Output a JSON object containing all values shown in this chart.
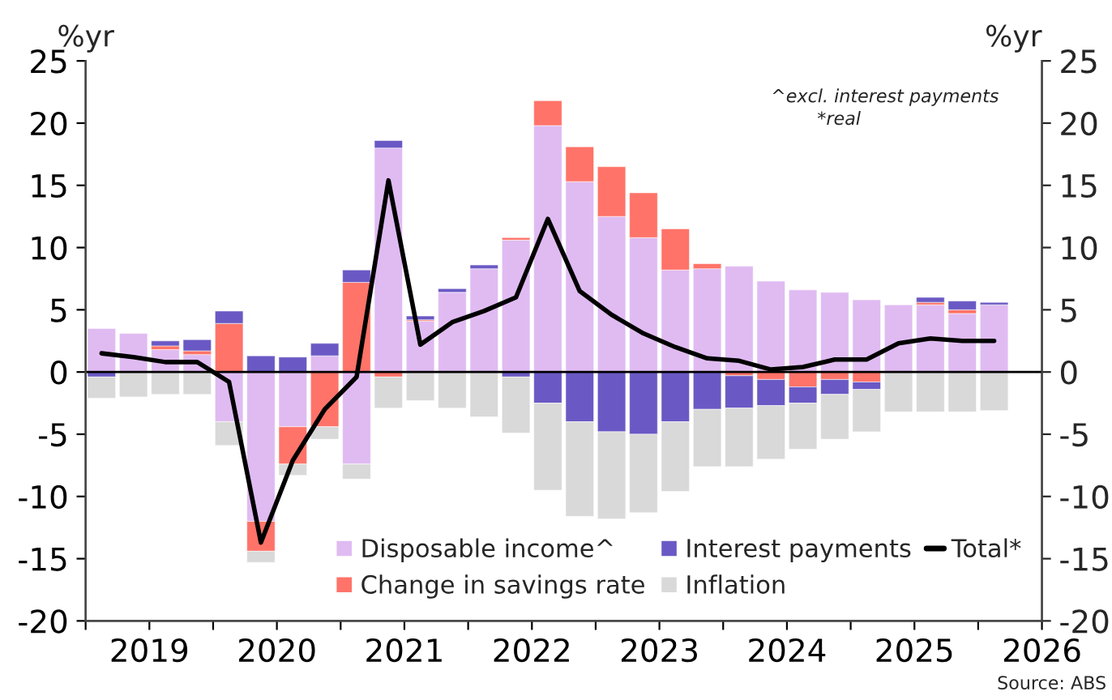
{
  "chart_data": {
    "type": "bar",
    "stacked": true,
    "x": [
      2019.125,
      2019.375,
      2019.625,
      2019.875,
      2020.125,
      2020.375,
      2020.625,
      2020.875,
      2021.125,
      2021.375,
      2021.625,
      2021.875,
      2022.125,
      2022.375,
      2022.625,
      2022.875,
      2023.125,
      2023.375,
      2023.625,
      2023.875,
      2024.125,
      2024.375,
      2024.625,
      2024.875,
      2025.125,
      2025.375,
      2025.625,
      2025.875,
      2026.125
    ],
    "series": [
      {
        "name": "Disposable income^",
        "color": "#e0bbf2",
        "values": [
          3.5,
          3.1,
          1.8,
          1.4,
          -4.0,
          -12.0,
          -4.4,
          1.3,
          -7.4,
          18.0,
          4.1,
          6.4,
          8.3,
          10.6,
          19.8,
          15.3,
          12.5,
          10.8,
          8.2,
          8.3,
          8.5,
          7.3,
          6.6,
          6.4,
          5.8,
          5.4,
          5.4,
          4.7,
          5.4
        ]
      },
      {
        "name": "Change in savings rate",
        "color": "#ff7369",
        "values": [
          null,
          null,
          0.3,
          0.3,
          3.9,
          -2.4,
          -3.0,
          -4.4,
          7.2,
          -0.4,
          0.1,
          null,
          null,
          0.2,
          2.0,
          2.8,
          4.0,
          3.6,
          3.3,
          0.4,
          -0.3,
          -0.6,
          -1.2,
          -0.6,
          -0.8,
          null,
          0.2,
          0.3,
          null
        ]
      },
      {
        "name": "Interest payments",
        "color": "#6a59c4",
        "values": [
          -0.4,
          null,
          0.4,
          0.9,
          1.0,
          1.3,
          1.2,
          1.0,
          1.0,
          0.6,
          0.3,
          0.3,
          0.3,
          -0.4,
          -2.5,
          -4.0,
          -4.8,
          -5.0,
          -4.0,
          -3.0,
          -2.6,
          -2.1,
          -1.3,
          -1.2,
          -0.6,
          null,
          0.4,
          0.7,
          0.2
        ]
      },
      {
        "name": "Inflation",
        "color": "#d9d9d9",
        "values": [
          -1.7,
          -2.0,
          -1.8,
          -1.8,
          -1.9,
          -0.9,
          -0.9,
          -1.0,
          -1.2,
          -2.5,
          -2.3,
          -2.9,
          -3.6,
          -4.5,
          -7.0,
          -7.6,
          -7.0,
          -6.3,
          -5.6,
          -4.6,
          -4.7,
          -4.3,
          -3.7,
          -3.6,
          -3.4,
          -3.2,
          -3.2,
          -3.2,
          -3.1
        ]
      },
      {
        "name": "Total*",
        "type": "line",
        "color": "#000000",
        "values": [
          1.5,
          1.2,
          0.8,
          0.8,
          -0.8,
          -13.7,
          -7.1,
          -3.0,
          -0.4,
          15.4,
          2.2,
          4.0,
          4.9,
          6.0,
          12.3,
          6.5,
          4.6,
          3.1,
          2.0,
          1.1,
          0.9,
          0.2,
          0.4,
          1.0,
          1.0,
          2.3,
          2.7,
          2.5,
          2.5
        ]
      }
    ],
    "ylabel": "%yr",
    "y2label": "%yr",
    "xlim": [
      2019,
      2026.5
    ],
    "xticks": [
      {
        "value": 2019,
        "label": null
      },
      {
        "value": 2019.5,
        "label": "2019"
      },
      {
        "value": 2020,
        "label": null
      },
      {
        "value": 2020.5,
        "label": "2020"
      },
      {
        "value": 2021,
        "label": null
      },
      {
        "value": 2021.5,
        "label": "2021"
      },
      {
        "value": 2022,
        "label": null
      },
      {
        "value": 2022.5,
        "label": "2022"
      },
      {
        "value": 2023,
        "label": null
      },
      {
        "value": 2023.5,
        "label": "2023"
      },
      {
        "value": 2024,
        "label": null
      },
      {
        "value": 2024.5,
        "label": "2024"
      },
      {
        "value": 2025,
        "label": null
      },
      {
        "value": 2025.5,
        "label": "2025"
      },
      {
        "value": 2026,
        "label": null
      },
      {
        "value": 2026.5,
        "label": "2026"
      }
    ],
    "ylim": [
      -20,
      25
    ],
    "yticks": [
      -20,
      -15,
      -10,
      -5,
      0,
      5,
      10,
      15,
      20,
      25
    ],
    "y2lim": [
      -20,
      25
    ],
    "y2ticks": [
      -20,
      -15,
      -10,
      -5,
      0,
      5,
      10,
      15,
      20,
      25
    ],
    "ref_lines": [
      {
        "axis": "y",
        "value": 0,
        "color": "#000000"
      }
    ],
    "annotations": [
      "^excl. interest payments",
      "*real",
      "Source: ABS"
    ],
    "legend": "bottom",
    "grid": false
  }
}
